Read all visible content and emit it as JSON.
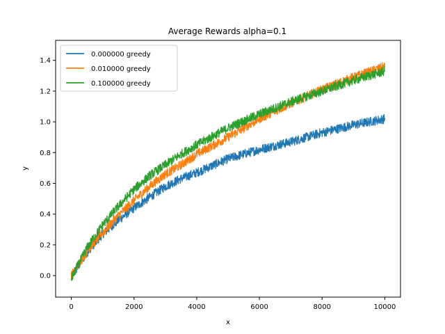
{
  "chart_data": {
    "type": "line",
    "title": "Average Rewards alpha=0.1",
    "xlabel": "x",
    "ylabel": "y",
    "xlim": [
      -500,
      10500
    ],
    "ylim": [
      -0.14,
      1.53
    ],
    "xticks": [
      0,
      2000,
      4000,
      6000,
      8000,
      10000
    ],
    "yticks": [
      0.0,
      0.2,
      0.4,
      0.6,
      0.8,
      1.0,
      1.2,
      1.4
    ],
    "xtick_labels": [
      "0",
      "2000",
      "4000",
      "6000",
      "8000",
      "10000"
    ],
    "ytick_labels": [
      "0.0",
      "0.2",
      "0.4",
      "0.6",
      "0.8",
      "1.0",
      "1.2",
      "1.4"
    ],
    "grid": false,
    "legend_position": "upper-left",
    "noise_band": 0.03,
    "series": [
      {
        "name": "0.000000 greedy",
        "color": "#1f77b4",
        "x": [
          0,
          500,
          1000,
          1500,
          2000,
          2500,
          3000,
          3500,
          4000,
          5000,
          6000,
          7000,
          8000,
          9000,
          10000
        ],
        "y": [
          -0.01,
          0.15,
          0.27,
          0.36,
          0.44,
          0.51,
          0.58,
          0.63,
          0.67,
          0.76,
          0.82,
          0.87,
          0.93,
          0.98,
          1.02
        ]
      },
      {
        "name": "0.010000 greedy",
        "color": "#ff7f0e",
        "x": [
          0,
          500,
          1000,
          1500,
          2000,
          2500,
          3000,
          3500,
          4000,
          5000,
          6000,
          7000,
          8000,
          9000,
          10000
        ],
        "y": [
          0.0,
          0.16,
          0.28,
          0.39,
          0.49,
          0.58,
          0.66,
          0.72,
          0.79,
          0.9,
          1.02,
          1.12,
          1.21,
          1.29,
          1.36
        ]
      },
      {
        "name": "0.100000 greedy",
        "color": "#2ca02c",
        "x": [
          0,
          500,
          1000,
          1500,
          2000,
          2500,
          3000,
          3500,
          4000,
          5000,
          6000,
          7000,
          8000,
          9000,
          10000
        ],
        "y": [
          -0.02,
          0.18,
          0.33,
          0.45,
          0.56,
          0.65,
          0.72,
          0.79,
          0.85,
          0.96,
          1.05,
          1.13,
          1.2,
          1.27,
          1.33
        ]
      }
    ]
  }
}
